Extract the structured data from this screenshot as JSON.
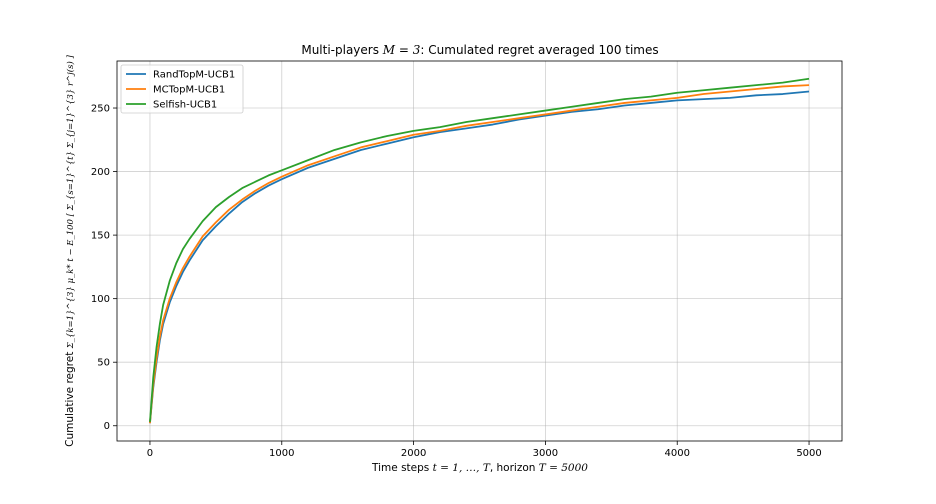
{
  "chart_data": {
    "type": "line",
    "title": {
      "prefix": "Multi-players ",
      "math": "M = 3",
      "suffix": ": Cumulated regret averaged 100 times"
    },
    "xlabel": {
      "prefix": "Time steps ",
      "math1": "t = 1, …, T",
      "middle": ", horizon ",
      "math2": "T = 5000"
    },
    "ylabel": {
      "prefix": "Cumulative regret ",
      "math": "Σ_{k=1}^{3} μ_k* t − E_100 [ Σ_{s=1}^{t} Σ_{j=1}^{3} r^j(s) ]"
    },
    "xlim": [
      -250,
      5250
    ],
    "ylim": [
      -12,
      287
    ],
    "xticks": [
      0,
      1000,
      2000,
      3000,
      4000,
      5000
    ],
    "yticks": [
      0,
      50,
      100,
      150,
      200,
      250
    ],
    "grid": true,
    "legend_position": "top-left",
    "x": [
      0,
      25,
      50,
      75,
      100,
      150,
      200,
      250,
      300,
      400,
      500,
      600,
      700,
      800,
      900,
      1000,
      1200,
      1400,
      1600,
      1800,
      2000,
      2200,
      2400,
      2600,
      2800,
      3000,
      3200,
      3400,
      3600,
      3800,
      4000,
      4200,
      4400,
      4600,
      4800,
      5000
    ],
    "series": [
      {
        "name": "RandTopM-UCB1",
        "color": "#1f77b4",
        "values": [
          2,
          30,
          50,
          67,
          80,
          97,
          110,
          121,
          130,
          146,
          157,
          167,
          176,
          183,
          189,
          194,
          203,
          210,
          217,
          222,
          227,
          231,
          234,
          237,
          241,
          244,
          247,
          249,
          252,
          254,
          256,
          257,
          258,
          260,
          261,
          263
        ]
      },
      {
        "name": "MCTopM-UCB1",
        "color": "#ff7f0e",
        "values": [
          2,
          32,
          53,
          70,
          83,
          100,
          113,
          124,
          133,
          149,
          160,
          170,
          178,
          185,
          191,
          196,
          205,
          212,
          219,
          224,
          229,
          232,
          236,
          239,
          242,
          245,
          248,
          251,
          254,
          256,
          258,
          261,
          263,
          265,
          267,
          268
        ]
      },
      {
        "name": "Selfish-UCB1",
        "color": "#2ca02c",
        "values": [
          3,
          38,
          62,
          80,
          95,
          114,
          128,
          139,
          147,
          161,
          172,
          180,
          187,
          192,
          197,
          201,
          209,
          217,
          223,
          228,
          232,
          235,
          239,
          242,
          245,
          248,
          251,
          254,
          257,
          259,
          262,
          264,
          266,
          268,
          270,
          273
        ]
      }
    ]
  }
}
